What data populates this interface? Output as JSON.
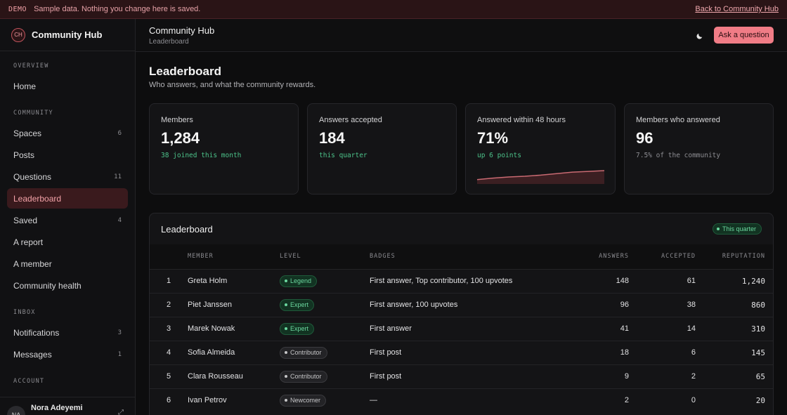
{
  "banner": {
    "tag": "DEMO",
    "message": "Sample data. Nothing you change here is saved.",
    "back_link": "Back to Community Hub"
  },
  "sidebar": {
    "brand": {
      "logo": "CH",
      "name": "Community Hub"
    },
    "sections": [
      {
        "title": "OVERVIEW",
        "items": [
          {
            "label": "Home",
            "count": ""
          }
        ]
      },
      {
        "title": "COMMUNITY",
        "items": [
          {
            "label": "Spaces",
            "count": "6"
          },
          {
            "label": "Posts",
            "count": ""
          },
          {
            "label": "Questions",
            "count": "11"
          },
          {
            "label": "Leaderboard",
            "count": "",
            "active": true
          },
          {
            "label": "Saved",
            "count": "4"
          },
          {
            "label": "A report",
            "count": ""
          },
          {
            "label": "A member",
            "count": ""
          },
          {
            "label": "Community health",
            "count": ""
          }
        ]
      },
      {
        "title": "INBOX",
        "items": [
          {
            "label": "Notifications",
            "count": "3"
          },
          {
            "label": "Messages",
            "count": "1"
          }
        ]
      },
      {
        "title": "ACCOUNT",
        "items": []
      }
    ],
    "user": {
      "initials": "NA",
      "name": "Nora Adeyemi",
      "action_icon": "expand-icon"
    }
  },
  "header": {
    "title": "Community Hub",
    "breadcrumb": "Leaderboard",
    "theme_icon": "moon-icon",
    "ask_button": "Ask a question"
  },
  "page": {
    "title": "Leaderboard",
    "subtitle": "Who answers, and what the community rewards."
  },
  "stats": [
    {
      "label": "Members",
      "value": "1,284",
      "note": "38 joined this month",
      "tone": "green"
    },
    {
      "label": "Answers accepted",
      "value": "184",
      "note": "this quarter",
      "tone": "green"
    },
    {
      "label": "Answered within 48 hours",
      "value": "71%",
      "note": "up 6 points",
      "tone": "green",
      "trend": [
        40,
        44,
        47,
        49,
        52,
        56,
        60,
        62,
        64
      ]
    },
    {
      "label": "Members who answered",
      "value": "96",
      "note": "7.5% of the community",
      "tone": "gray"
    }
  ],
  "leaderboard": {
    "title": "Leaderboard",
    "period": "This quarter",
    "columns": {
      "rank": "",
      "member": "MEMBER",
      "level": "LEVEL",
      "badges": "BADGES",
      "answers": "ANSWERS",
      "accepted": "ACCEPTED",
      "reputation": "REPUTATION"
    },
    "rows": [
      {
        "rank": "1",
        "member": "Greta Holm",
        "level": "Legend",
        "level_key": "legend",
        "badges": "First answer, Top contributor, 100 upvotes",
        "answers": "148",
        "accepted": "61",
        "reputation": "1,240"
      },
      {
        "rank": "2",
        "member": "Piet Janssen",
        "level": "Expert",
        "level_key": "expert",
        "badges": "First answer, 100 upvotes",
        "answers": "96",
        "accepted": "38",
        "reputation": "860"
      },
      {
        "rank": "3",
        "member": "Marek Nowak",
        "level": "Expert",
        "level_key": "expert",
        "badges": "First answer",
        "answers": "41",
        "accepted": "14",
        "reputation": "310"
      },
      {
        "rank": "4",
        "member": "Sofia Almeida",
        "level": "Contributor",
        "level_key": "contributor",
        "badges": "First post",
        "answers": "18",
        "accepted": "6",
        "reputation": "145"
      },
      {
        "rank": "5",
        "member": "Clara Rousseau",
        "level": "Contributor",
        "level_key": "contributor",
        "badges": "First post",
        "answers": "9",
        "accepted": "2",
        "reputation": "65"
      },
      {
        "rank": "6",
        "member": "Ivan Petrov",
        "level": "Newcomer",
        "level_key": "newcomer",
        "badges": "—",
        "answers": "2",
        "accepted": "0",
        "reputation": "20"
      }
    ]
  },
  "colors": {
    "accent": "#f07c86",
    "success": "#4cc38a",
    "background": "#0d0d0e"
  }
}
